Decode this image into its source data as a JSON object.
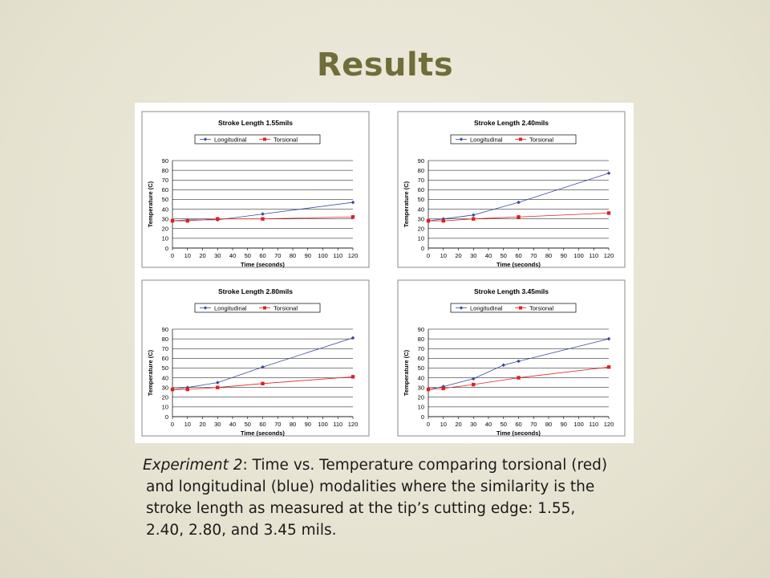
{
  "slide": {
    "title": "Results",
    "caption": {
      "experiment_label": "Experiment 2",
      "line1_rest": ":  Time vs. Temperature comparing torsional (red)",
      "line2": "and longitudinal (blue) modalities where the similarity is the",
      "line3": "stroke length as measured at the tip’s cutting edge:  1.55,",
      "line4": "2.40, 2.80, and 3.45 mils."
    }
  },
  "colors": {
    "longitudinal": "#3a4a9a",
    "torsional": "#e02020",
    "grid": "#000000",
    "panel_border": "#888888"
  },
  "chart_data": [
    {
      "type": "line",
      "title": "Stroke Length 1.55mils",
      "xlabel": "Time (seconds)",
      "ylabel": "Temperature (C)",
      "x_ticks": [
        0,
        10,
        20,
        30,
        40,
        50,
        60,
        70,
        80,
        90,
        100,
        110,
        120
      ],
      "y_ticks": [
        0,
        10,
        20,
        30,
        40,
        50,
        60,
        70,
        80,
        90
      ],
      "xlim": [
        0,
        120
      ],
      "ylim": [
        0,
        90
      ],
      "grid": true,
      "legend": "top",
      "series": [
        {
          "name": "Longitudinal",
          "x": [
            0,
            10,
            30,
            60,
            120
          ],
          "values": [
            28,
            29,
            29,
            35,
            47
          ]
        },
        {
          "name": "Torsional",
          "x": [
            0,
            10,
            30,
            60,
            120
          ],
          "values": [
            28,
            28,
            30,
            30,
            32
          ]
        }
      ]
    },
    {
      "type": "line",
      "title": "Stroke Length 2.40mils",
      "xlabel": "Time (seconds)",
      "ylabel": "Temperature (C)",
      "x_ticks": [
        0,
        10,
        20,
        30,
        40,
        50,
        60,
        70,
        80,
        90,
        100,
        110,
        120
      ],
      "y_ticks": [
        0,
        10,
        20,
        30,
        40,
        50,
        60,
        70,
        80,
        90
      ],
      "xlim": [
        0,
        120
      ],
      "ylim": [
        0,
        90
      ],
      "grid": true,
      "legend": "top",
      "series": [
        {
          "name": "Longitudinal",
          "x": [
            0,
            10,
            30,
            60,
            120
          ],
          "values": [
            28,
            30,
            34,
            47,
            77
          ]
        },
        {
          "name": "Torsional",
          "x": [
            0,
            10,
            30,
            60,
            120
          ],
          "values": [
            28,
            28,
            30,
            32,
            36
          ]
        }
      ]
    },
    {
      "type": "line",
      "title": "Stroke Length 2.80mils",
      "xlabel": "Time (seconds)",
      "ylabel": "Temperature (C)",
      "x_ticks": [
        0,
        10,
        20,
        30,
        40,
        50,
        60,
        70,
        80,
        90,
        100,
        110,
        120
      ],
      "y_ticks": [
        0,
        10,
        20,
        30,
        40,
        50,
        60,
        70,
        80,
        90
      ],
      "xlim": [
        0,
        120
      ],
      "ylim": [
        0,
        90
      ],
      "grid": true,
      "legend": "top",
      "series": [
        {
          "name": "Longitudinal",
          "x": [
            0,
            10,
            30,
            60,
            120
          ],
          "values": [
            28,
            30,
            35,
            51,
            81
          ]
        },
        {
          "name": "Torsional",
          "x": [
            0,
            10,
            30,
            60,
            120
          ],
          "values": [
            28,
            28,
            30,
            34,
            41
          ]
        }
      ]
    },
    {
      "type": "line",
      "title": "Stroke Length 3.45mils",
      "xlabel": "Time (seconds)",
      "ylabel": "Temperature (C)",
      "x_ticks": [
        0,
        10,
        20,
        30,
        40,
        50,
        60,
        70,
        80,
        90,
        100,
        110,
        120
      ],
      "y_ticks": [
        0,
        10,
        20,
        30,
        40,
        50,
        60,
        70,
        80,
        90
      ],
      "xlim": [
        0,
        120
      ],
      "ylim": [
        0,
        90
      ],
      "grid": true,
      "legend": "top",
      "series": [
        {
          "name": "Longitudinal",
          "x": [
            0,
            10,
            30,
            50,
            60,
            120
          ],
          "values": [
            28,
            31,
            39,
            53,
            57,
            80
          ]
        },
        {
          "name": "Torsional",
          "x": [
            0,
            10,
            30,
            60,
            120
          ],
          "values": [
            28,
            29,
            33,
            40,
            51
          ]
        }
      ]
    }
  ]
}
